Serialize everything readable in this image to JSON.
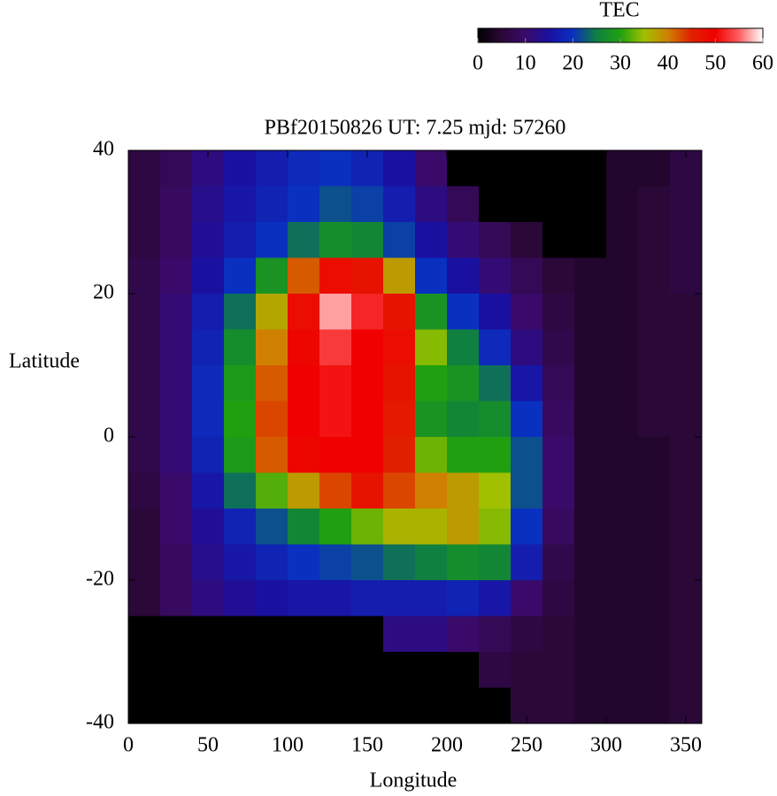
{
  "chart_data": {
    "type": "heatmap",
    "title": "PBf20150826  UT: 7.25  mjd: 57260",
    "xlabel": "Longitude",
    "ylabel": "Latitude",
    "colorbar_label": "TEC",
    "x": [
      10,
      30,
      50,
      70,
      90,
      110,
      130,
      150,
      170,
      190,
      210,
      230,
      250,
      270,
      290,
      310,
      330,
      350
    ],
    "y": [
      37.5,
      32.5,
      27.5,
      22.5,
      17.5,
      12.5,
      7.5,
      2.5,
      -2.5,
      -7.5,
      -12.5,
      -17.5,
      -22.5,
      -27.5,
      -32.5,
      -37.5
    ],
    "values": [
      [
        6,
        8,
        12,
        15,
        17,
        19,
        20,
        18,
        15,
        10,
        0,
        0,
        0,
        0,
        0,
        4,
        4,
        6
      ],
      [
        6,
        9,
        13,
        16,
        18,
        20,
        22,
        21,
        17,
        12,
        8,
        0,
        0,
        0,
        0,
        4,
        5,
        6
      ],
      [
        6,
        9,
        14,
        17,
        20,
        24,
        27,
        26,
        21,
        15,
        11,
        8,
        5,
        0,
        0,
        4,
        5,
        6
      ],
      [
        7,
        10,
        15,
        20,
        28,
        42,
        48,
        47,
        38,
        20,
        15,
        11,
        8,
        5,
        4,
        4,
        5,
        6
      ],
      [
        7,
        11,
        17,
        24,
        37,
        48,
        57,
        52,
        47,
        28,
        20,
        15,
        10,
        6,
        4,
        4,
        5,
        5
      ],
      [
        7,
        11,
        18,
        27,
        40,
        49,
        53,
        50,
        48,
        34,
        25,
        19,
        12,
        7,
        4,
        4,
        5,
        5
      ],
      [
        7,
        11,
        19,
        29,
        42,
        50,
        51,
        50,
        47,
        30,
        28,
        24,
        16,
        8,
        4,
        4,
        5,
        5
      ],
      [
        7,
        11,
        19,
        30,
        43,
        50,
        51,
        50,
        46,
        28,
        26,
        27,
        20,
        9,
        4,
        4,
        5,
        5
      ],
      [
        7,
        11,
        18,
        29,
        42,
        49,
        50,
        50,
        45,
        33,
        30,
        30,
        22,
        10,
        4,
        4,
        4,
        5
      ],
      [
        6,
        10,
        16,
        24,
        32,
        38,
        43,
        47,
        43,
        40,
        38,
        35,
        22,
        10,
        4,
        4,
        4,
        5
      ],
      [
        5,
        10,
        14,
        18,
        22,
        26,
        30,
        33,
        36,
        36,
        38,
        34,
        20,
        9,
        4,
        4,
        4,
        5
      ],
      [
        5,
        9,
        13,
        16,
        18,
        20,
        21,
        22,
        24,
        25,
        27,
        26,
        17,
        7,
        4,
        4,
        4,
        5
      ],
      [
        5,
        9,
        12,
        14,
        15,
        16,
        16,
        17,
        17,
        17,
        18,
        16,
        10,
        6,
        4,
        4,
        4,
        5
      ],
      [
        0,
        0,
        0,
        0,
        0,
        0,
        0,
        0,
        12,
        12,
        10,
        8,
        6,
        5,
        4,
        4,
        4,
        5
      ],
      [
        0,
        0,
        0,
        0,
        0,
        0,
        0,
        0,
        0,
        0,
        0,
        6,
        5,
        5,
        4,
        4,
        4,
        5
      ],
      [
        0,
        0,
        0,
        0,
        0,
        0,
        0,
        0,
        0,
        0,
        0,
        0,
        5,
        5,
        4,
        4,
        4,
        5
      ]
    ],
    "xlim": [
      0,
      360
    ],
    "ylim": [
      -40,
      40
    ],
    "xticks": [
      0,
      50,
      100,
      150,
      200,
      250,
      300,
      350
    ],
    "yticks": [
      -40,
      -20,
      0,
      20,
      40
    ],
    "zlim": [
      0,
      60
    ],
    "zticks": [
      0,
      10,
      20,
      30,
      40,
      50,
      60
    ],
    "palette": [
      "#000000",
      "#2a0838",
      "#3a0a6a",
      "#1a10a0",
      "#0a30c0",
      "#108040",
      "#20a010",
      "#a0c000",
      "#d08000",
      "#e02000",
      "#f00000",
      "#ff6060",
      "#ffffff"
    ]
  }
}
